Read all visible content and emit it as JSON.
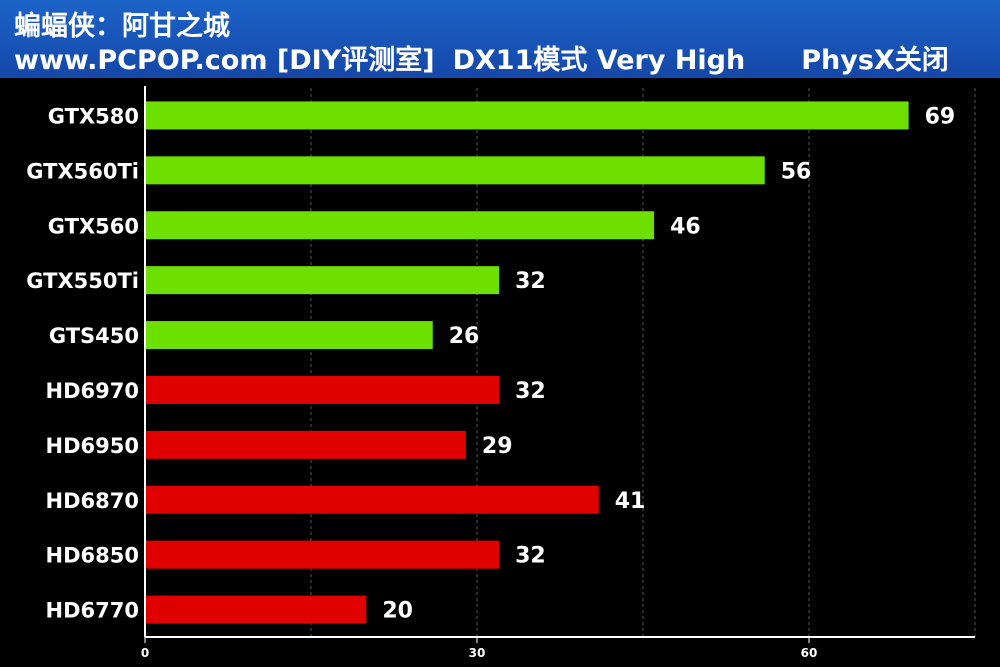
{
  "header": {
    "title": "蝙蝠侠：阿甘之城",
    "site": "www.PCPOP.com [DIY评测室]",
    "mode": "DX11模式 Very High",
    "physx": "PhysX关闭"
  },
  "colors": {
    "background": "#000000",
    "header_bg": "#1a56bb",
    "nvidia_bar": "#6ee000",
    "amd_bar": "#e00000",
    "text": "#ffffff"
  },
  "chart_data": {
    "type": "bar",
    "orientation": "horizontal",
    "categories": [
      "GTX580",
      "GTX560Ti",
      "GTX560",
      "GTX550Ti",
      "GTS450",
      "HD6970",
      "HD6950",
      "HD6870",
      "HD6850",
      "HD6770"
    ],
    "values": [
      69,
      56,
      46,
      32,
      26,
      32,
      29,
      41,
      32,
      20
    ],
    "bar_colors": [
      "#6ee000",
      "#6ee000",
      "#6ee000",
      "#6ee000",
      "#6ee000",
      "#e00000",
      "#e00000",
      "#e00000",
      "#e00000",
      "#e00000"
    ],
    "xlim": [
      0,
      75
    ],
    "x_ticks": [
      0,
      30,
      60
    ],
    "grid": "vertical dashed",
    "legend": "none",
    "data_labels": true
  }
}
